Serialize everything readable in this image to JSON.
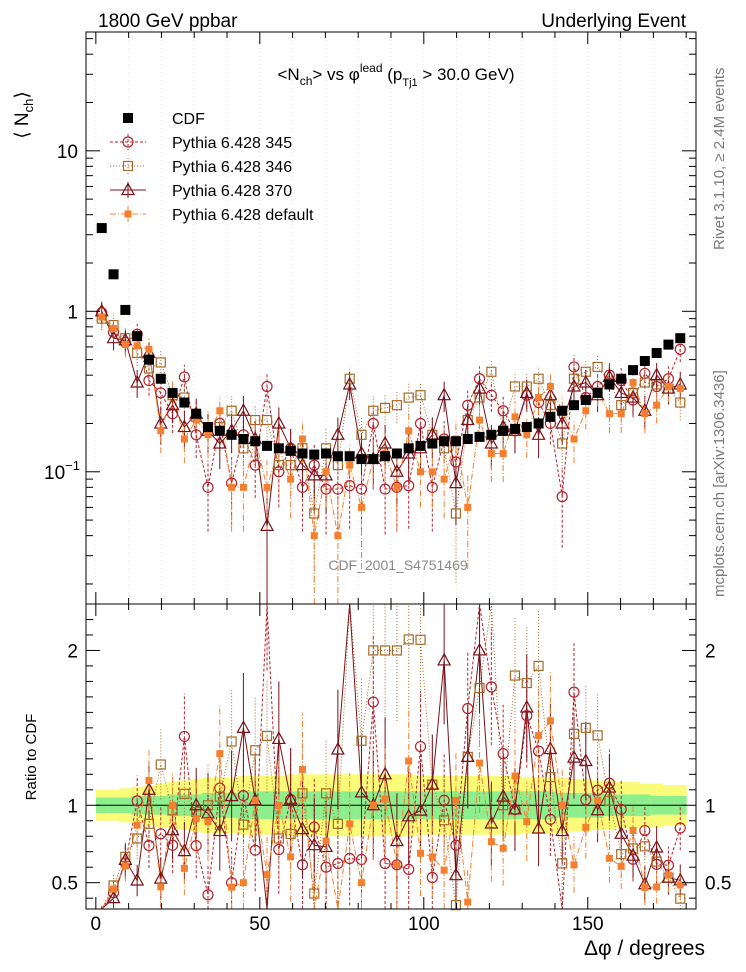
{
  "header": {
    "left": "1800 GeV ppbar",
    "right": "Underlying Event"
  },
  "side_labels": {
    "rivet": "Rivet 3.1.10, ≥ 2.4M events",
    "mcplots": "mcplots.cern.ch [arXiv:1306.3436]"
  },
  "watermark": "CDF_2001_S4751469",
  "chart_data": [
    {
      "type": "scatter",
      "panel": "main",
      "title": "<Nch> vs φlead (pTj1 > 30.0 GeV)",
      "title_parts": {
        "a": "<N",
        "a_sub": "ch",
        "b": "> vs φ",
        "b_sup": "lead",
        "c": " (p",
        "c_sub": "Tj1",
        "d": " > 30.0 GeV)"
      },
      "ylabel": "⟨ Nch⟩",
      "ylabel_parts": {
        "main": "⟨ N",
        "sub": "ch",
        "close": "⟩"
      },
      "xlim": [
        -3,
        183
      ],
      "ylim": [
        0.015,
        55
      ],
      "yscale": "log",
      "ytick_labels": [
        {
          "value": 10,
          "label": "10"
        },
        {
          "value": 1,
          "label": "1"
        },
        {
          "value": 0.1,
          "label": "10",
          "sup": "−1"
        }
      ],
      "legend_position": "top-left",
      "x": [
        1.8,
        5.4,
        9,
        12.6,
        16.2,
        19.8,
        23.4,
        27,
        30.6,
        34.2,
        37.8,
        41.4,
        45,
        48.6,
        52.2,
        55.8,
        59.4,
        63,
        66.6,
        70.2,
        73.8,
        77.4,
        81,
        84.6,
        88.2,
        91.8,
        95.4,
        99,
        102.6,
        106.2,
        109.8,
        113.4,
        117,
        120.6,
        124.2,
        127.8,
        131.4,
        135,
        138.6,
        142.2,
        145.8,
        149.4,
        153,
        156.6,
        160.2,
        163.8,
        167.4,
        171,
        174.6,
        178.2
      ],
      "series": [
        {
          "name": "CDF",
          "color": "#000000",
          "marker": "filled-square",
          "values": [
            3.3,
            1.7,
            1.02,
            0.7,
            0.5,
            0.38,
            0.31,
            0.27,
            0.23,
            0.19,
            0.18,
            0.17,
            0.16,
            0.155,
            0.145,
            0.14,
            0.135,
            0.13,
            0.128,
            0.13,
            0.125,
            0.125,
            0.12,
            0.12,
            0.125,
            0.13,
            0.14,
            0.145,
            0.15,
            0.155,
            0.155,
            0.16,
            0.165,
            0.17,
            0.18,
            0.185,
            0.19,
            0.2,
            0.22,
            0.24,
            0.26,
            0.28,
            0.31,
            0.35,
            0.38,
            0.43,
            0.49,
            0.55,
            0.62,
            0.68
          ]
        },
        {
          "name": "Pythia 6.428 345",
          "color": "#b5232f",
          "marker": "open-circle",
          "dash": "3,2",
          "values": [
            0.98,
            0.74,
            0.64,
            0.72,
            0.37,
            0.31,
            0.23,
            0.39,
            0.17,
            0.08,
            0.2,
            0.085,
            0.17,
            0.11,
            0.34,
            0.1,
            0.14,
            0.08,
            0.11,
            0.078,
            0.078,
            0.082,
            0.078,
            0.2,
            0.078,
            0.08,
            0.082,
            0.2,
            0.08,
            0.16,
            0.115,
            0.26,
            0.38,
            0.3,
            0.24,
            0.18,
            0.3,
            0.27,
            0.2,
            0.07,
            0.45,
            0.29,
            0.34,
            0.4,
            0.37,
            0.28,
            0.41,
            0.34,
            0.38,
            0.58
          ]
        },
        {
          "name": "Pythia 6.428 346",
          "color": "#a56a28",
          "marker": "open-square",
          "dash": "1,2",
          "values": [
            0.9,
            0.82,
            0.68,
            0.55,
            0.44,
            0.48,
            0.3,
            0.29,
            0.22,
            0.19,
            0.19,
            0.24,
            0.14,
            0.21,
            0.21,
            0.11,
            0.11,
            0.14,
            0.055,
            0.14,
            0.11,
            0.38,
            0.17,
            0.24,
            0.25,
            0.26,
            0.29,
            0.3,
            0.17,
            0.14,
            0.055,
            0.21,
            0.29,
            0.42,
            0.18,
            0.34,
            0.34,
            0.38,
            0.26,
            0.15,
            0.38,
            0.42,
            0.45,
            0.36,
            0.26,
            0.31,
            0.36,
            0.35,
            0.33,
            0.27
          ]
        },
        {
          "name": "Pythia 6.428 370",
          "color": "#7a1018",
          "marker": "open-triangle",
          "dash": "",
          "values": [
            1.0,
            0.68,
            0.66,
            0.36,
            0.55,
            0.2,
            0.26,
            0.19,
            0.23,
            0.18,
            0.15,
            0.18,
            0.24,
            0.16,
            0.046,
            0.2,
            0.14,
            0.11,
            0.095,
            0.095,
            0.17,
            0.35,
            0.13,
            0.12,
            0.15,
            0.1,
            0.13,
            0.14,
            0.17,
            0.3,
            0.085,
            0.21,
            0.33,
            0.15,
            0.19,
            0.18,
            0.31,
            0.17,
            0.3,
            0.2,
            0.34,
            0.36,
            0.3,
            0.39,
            0.31,
            0.29,
            0.24,
            0.4,
            0.33,
            0.35
          ]
        },
        {
          "name": "Pythia 6.428 default",
          "color": "#f4802f",
          "marker": "filled-small-square",
          "dash": "6,2,1,2",
          "values": [
            0.92,
            0.78,
            0.62,
            0.61,
            0.58,
            0.18,
            0.31,
            0.16,
            0.21,
            0.17,
            0.24,
            0.08,
            0.08,
            0.16,
            0.08,
            0.14,
            0.09,
            0.16,
            0.04,
            0.1,
            0.04,
            0.11,
            0.06,
            0.12,
            0.13,
            0.08,
            0.18,
            0.1,
            0.1,
            0.09,
            0.16,
            0.06,
            0.21,
            0.13,
            0.13,
            0.22,
            0.17,
            0.29,
            0.34,
            0.24,
            0.16,
            0.24,
            0.32,
            0.23,
            0.23,
            0.36,
            0.23,
            0.26,
            0.34,
            0.33
          ]
        }
      ]
    },
    {
      "type": "scatter",
      "panel": "ratio",
      "ylabel": "Ratio to CDF",
      "xlabel": "Δφ / degrees",
      "xlim": [
        -3,
        183
      ],
      "ylim": [
        0.33,
        2.3
      ],
      "xticks": [
        0,
        50,
        100,
        150
      ],
      "yticks": [
        0.5,
        1,
        2
      ],
      "band_1sigma": [
        0.05,
        0.05,
        0.05,
        0.06,
        0.06,
        0.06,
        0.07,
        0.07,
        0.07,
        0.08,
        0.08,
        0.08,
        0.09,
        0.09,
        0.09,
        0.09,
        0.09,
        0.09,
        0.09,
        0.09,
        0.09,
        0.09,
        0.09,
        0.09,
        0.09,
        0.09,
        0.09,
        0.09,
        0.09,
        0.09,
        0.09,
        0.09,
        0.09,
        0.09,
        0.09,
        0.09,
        0.09,
        0.09,
        0.09,
        0.08,
        0.08,
        0.08,
        0.08,
        0.07,
        0.07,
        0.07,
        0.07,
        0.06,
        0.06,
        0.06
      ],
      "band_2sigma": [
        0.1,
        0.1,
        0.11,
        0.12,
        0.13,
        0.14,
        0.15,
        0.16,
        0.17,
        0.18,
        0.18,
        0.18,
        0.19,
        0.19,
        0.19,
        0.19,
        0.2,
        0.2,
        0.2,
        0.2,
        0.2,
        0.2,
        0.2,
        0.2,
        0.2,
        0.2,
        0.2,
        0.19,
        0.19,
        0.19,
        0.19,
        0.19,
        0.19,
        0.19,
        0.19,
        0.19,
        0.18,
        0.18,
        0.18,
        0.18,
        0.17,
        0.17,
        0.16,
        0.16,
        0.15,
        0.15,
        0.14,
        0.14,
        0.13,
        0.13
      ],
      "band_1sigma_color": "#8dee8d",
      "band_2sigma_color": "#fbfb7a"
    }
  ]
}
